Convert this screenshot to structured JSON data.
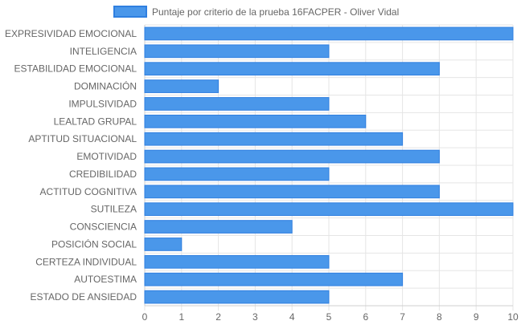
{
  "chart_data": {
    "type": "bar",
    "orientation": "horizontal",
    "legend": "top-center",
    "grid": true,
    "xlim": [
      0,
      10
    ],
    "ticks": [
      "0",
      "1",
      "2",
      "3",
      "4",
      "5",
      "6",
      "7",
      "8",
      "9",
      "10"
    ],
    "categories": [
      "EXPRESIVIDAD EMOCIONAL",
      "INTELIGENCIA",
      "ESTABILIDAD EMOCIONAL",
      "DOMINACIÓN",
      "IMPULSIVIDAD",
      "LEALTAD GRUPAL",
      "APTITUD SITUACIONAL",
      "EMOTIVIDAD",
      "CREDIBILIDAD",
      "ACTITUD COGNITIVA",
      "SUTILEZA",
      "CONSCIENCIA",
      "POSICIÓN SOCIAL",
      "CERTEZA INDIVIDUAL",
      "AUTOESTIMA",
      "ESTADO DE ANSIEDAD"
    ],
    "series": [
      {
        "name": "Puntaje por criterio de la prueba 16FACPER - Oliver Vidal",
        "values": [
          10,
          5,
          8,
          2,
          5,
          6,
          7,
          8,
          5,
          8,
          10,
          4,
          1,
          5,
          7,
          5
        ],
        "fill_color": "#4a97ea",
        "border_color": "#2f7fe0"
      }
    ]
  }
}
